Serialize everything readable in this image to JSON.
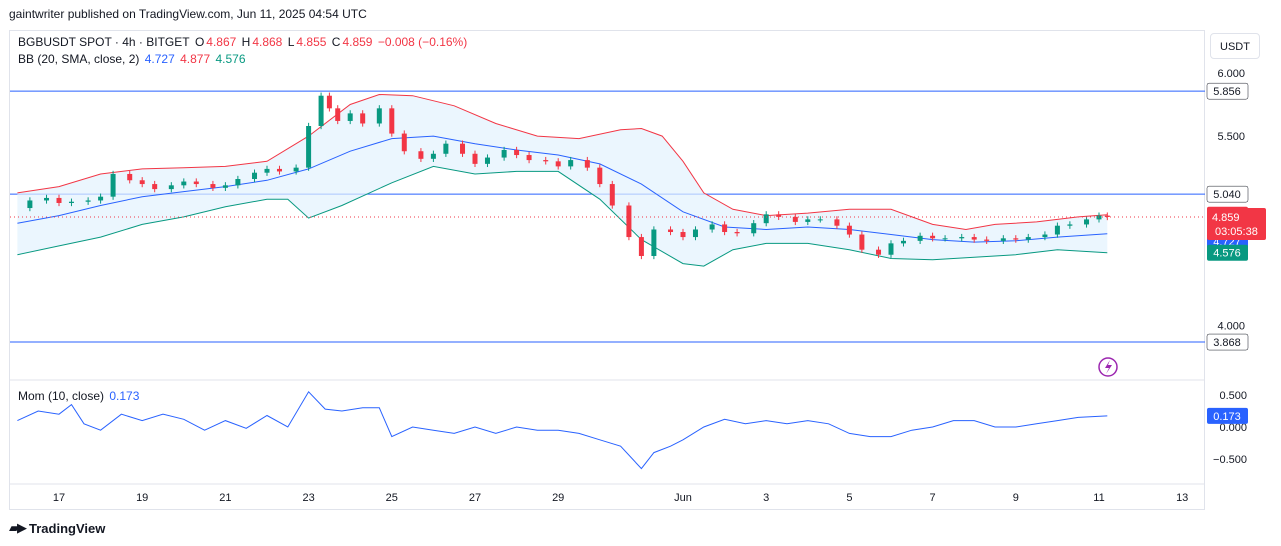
{
  "header": {
    "publisher": "gaintwriter published on TradingView.com, Jun 11, 2025 04:54 UTC"
  },
  "currency": "USDT",
  "footer": {
    "brand": "TradingView"
  },
  "legend": {
    "symbol": "BGBUSDT SPOT · 4h · BITGET",
    "o_label": "O",
    "o": "4.867",
    "h_label": "H",
    "h": "4.868",
    "l_label": "L",
    "l": "4.855",
    "c_label": "C",
    "c": "4.859",
    "change": "−0.008 (−0.16%)",
    "bb_label": "BB (20, SMA, close, 2)",
    "bb_mid": "4.727",
    "bb_upper": "4.877",
    "bb_lower": "4.576",
    "mom_label": "Mom (10, close)",
    "mom_value": "0.173"
  },
  "colors": {
    "up": "#089981",
    "down": "#f23645",
    "upper_band": "#f23645",
    "basis": "#2962ff",
    "lower_band": "#089981",
    "band_fill": "#e3f2fd",
    "hline": "#2962ff",
    "momentum": "#2962ff"
  },
  "chart_data": [
    {
      "type": "candlestick",
      "title": "BGBUSDT SPOT · 4h · BITGET",
      "ylim": [
        3.72,
        6.18
      ],
      "y_ticks": [
        "6.000",
        "5.500",
        "4.000"
      ],
      "x_ticks": [
        "17",
        "19",
        "21",
        "23",
        "25",
        "27",
        "29",
        "Jun",
        "3",
        "5",
        "7",
        "9",
        "11",
        "13"
      ],
      "x_tick_dates": [
        17,
        19,
        21,
        23,
        25,
        27,
        29,
        32,
        34,
        36,
        38,
        40,
        42,
        44
      ],
      "date_offset_note": "May dates; Jun dates expressed as 31 + day",
      "horizontal_lines": [
        5.856,
        5.04,
        3.868
      ],
      "horizontal_line_labels": [
        "5.856",
        "5.040",
        "3.868"
      ],
      "current_price": 4.859,
      "current_price_label": "4.859",
      "countdown": "03:05:38",
      "price_labels": {
        "bb_upper": "4.877",
        "bb_mid": "4.727",
        "bb_lower": "4.576"
      },
      "series": [
        {
          "name": "Close",
          "points": [
            [
              16.0,
              4.93
            ],
            [
              16.3,
              4.99
            ],
            [
              16.7,
              5.01
            ],
            [
              17.0,
              4.97
            ],
            [
              17.3,
              4.98
            ],
            [
              17.7,
              4.99
            ],
            [
              18.0,
              5.02
            ],
            [
              18.3,
              5.2
            ],
            [
              18.7,
              5.15
            ],
            [
              19.0,
              5.12
            ],
            [
              19.3,
              5.08
            ],
            [
              19.7,
              5.11
            ],
            [
              20.0,
              5.14
            ],
            [
              20.3,
              5.12
            ],
            [
              20.7,
              5.09
            ],
            [
              21.0,
              5.11
            ],
            [
              21.3,
              5.16
            ],
            [
              21.7,
              5.21
            ],
            [
              22.0,
              5.24
            ],
            [
              22.3,
              5.22
            ],
            [
              22.7,
              5.25
            ],
            [
              23.0,
              5.58
            ],
            [
              23.3,
              5.82
            ],
            [
              23.5,
              5.72
            ],
            [
              23.7,
              5.62
            ],
            [
              24.0,
              5.68
            ],
            [
              24.3,
              5.6
            ],
            [
              24.7,
              5.72
            ],
            [
              25.0,
              5.52
            ],
            [
              25.3,
              5.38
            ],
            [
              25.7,
              5.32
            ],
            [
              26.0,
              5.36
            ],
            [
              26.3,
              5.44
            ],
            [
              26.7,
              5.36
            ],
            [
              27.0,
              5.28
            ],
            [
              27.3,
              5.33
            ],
            [
              27.7,
              5.39
            ],
            [
              28.0,
              5.35
            ],
            [
              28.3,
              5.31
            ],
            [
              28.7,
              5.3
            ],
            [
              29.0,
              5.26
            ],
            [
              29.3,
              5.31
            ],
            [
              29.7,
              5.25
            ],
            [
              30.0,
              5.12
            ],
            [
              30.3,
              4.95
            ],
            [
              30.7,
              4.7
            ],
            [
              31.0,
              4.55
            ],
            [
              31.3,
              4.76
            ],
            [
              31.7,
              4.74
            ],
            [
              32.0,
              4.7
            ],
            [
              32.3,
              4.76
            ],
            [
              32.7,
              4.8
            ],
            [
              33.0,
              4.74
            ],
            [
              33.3,
              4.73
            ],
            [
              33.7,
              4.81
            ],
            [
              34.0,
              4.88
            ],
            [
              34.3,
              4.86
            ],
            [
              34.7,
              4.82
            ],
            [
              35.0,
              4.84
            ],
            [
              35.3,
              4.84
            ],
            [
              35.7,
              4.79
            ],
            [
              36.0,
              4.72
            ],
            [
              36.3,
              4.6
            ],
            [
              36.7,
              4.56
            ],
            [
              37.0,
              4.65
            ],
            [
              37.3,
              4.67
            ],
            [
              37.7,
              4.71
            ],
            [
              38.0,
              4.69
            ],
            [
              38.3,
              4.69
            ],
            [
              38.7,
              4.7
            ],
            [
              39.0,
              4.68
            ],
            [
              39.3,
              4.67
            ],
            [
              39.7,
              4.69
            ],
            [
              40.0,
              4.68
            ],
            [
              40.3,
              4.7
            ],
            [
              40.7,
              4.72
            ],
            [
              41.0,
              4.79
            ],
            [
              41.3,
              4.8
            ],
            [
              41.7,
              4.84
            ],
            [
              42.0,
              4.87
            ],
            [
              42.2,
              4.859
            ]
          ]
        },
        {
          "name": "BB Upper",
          "points": [
            [
              16.0,
              5.05
            ],
            [
              17.0,
              5.1
            ],
            [
              18.0,
              5.2
            ],
            [
              19.0,
              5.24
            ],
            [
              20.0,
              5.25
            ],
            [
              21.0,
              5.26
            ],
            [
              22.0,
              5.3
            ],
            [
              23.0,
              5.5
            ],
            [
              24.0,
              5.75
            ],
            [
              24.7,
              5.83
            ],
            [
              25.5,
              5.82
            ],
            [
              26.5,
              5.74
            ],
            [
              27.5,
              5.6
            ],
            [
              28.5,
              5.5
            ],
            [
              29.5,
              5.48
            ],
            [
              30.5,
              5.55
            ],
            [
              31.0,
              5.56
            ],
            [
              31.5,
              5.5
            ],
            [
              32.0,
              5.3
            ],
            [
              32.5,
              5.05
            ],
            [
              33.2,
              4.92
            ],
            [
              34.0,
              4.87
            ],
            [
              35.0,
              4.89
            ],
            [
              36.0,
              4.92
            ],
            [
              37.0,
              4.92
            ],
            [
              38.0,
              4.8
            ],
            [
              38.8,
              4.76
            ],
            [
              39.5,
              4.8
            ],
            [
              40.5,
              4.82
            ],
            [
              41.5,
              4.86
            ],
            [
              42.2,
              4.877
            ]
          ]
        },
        {
          "name": "BB Basis",
          "points": [
            [
              16.0,
              4.81
            ],
            [
              17.0,
              4.87
            ],
            [
              18.0,
              4.95
            ],
            [
              19.0,
              5.02
            ],
            [
              20.0,
              5.06
            ],
            [
              21.0,
              5.1
            ],
            [
              22.0,
              5.15
            ],
            [
              23.0,
              5.24
            ],
            [
              24.0,
              5.38
            ],
            [
              25.0,
              5.48
            ],
            [
              26.0,
              5.5
            ],
            [
              27.0,
              5.44
            ],
            [
              28.0,
              5.39
            ],
            [
              29.0,
              5.35
            ],
            [
              30.0,
              5.28
            ],
            [
              31.0,
              5.12
            ],
            [
              32.0,
              4.9
            ],
            [
              33.0,
              4.78
            ],
            [
              34.0,
              4.76
            ],
            [
              35.0,
              4.78
            ],
            [
              36.0,
              4.76
            ],
            [
              37.0,
              4.72
            ],
            [
              38.0,
              4.68
            ],
            [
              39.0,
              4.66
            ],
            [
              40.0,
              4.67
            ],
            [
              41.0,
              4.7
            ],
            [
              42.2,
              4.727
            ]
          ]
        },
        {
          "name": "BB Lower",
          "points": [
            [
              16.0,
              4.56
            ],
            [
              17.0,
              4.63
            ],
            [
              18.0,
              4.7
            ],
            [
              19.0,
              4.8
            ],
            [
              20.0,
              4.86
            ],
            [
              21.0,
              4.94
            ],
            [
              22.0,
              5.0
            ],
            [
              22.5,
              5.0
            ],
            [
              23.0,
              4.85
            ],
            [
              23.8,
              4.95
            ],
            [
              25.0,
              5.13
            ],
            [
              26.0,
              5.26
            ],
            [
              27.0,
              5.2
            ],
            [
              28.0,
              5.22
            ],
            [
              29.0,
              5.22
            ],
            [
              30.0,
              5.0
            ],
            [
              31.0,
              4.68
            ],
            [
              32.0,
              4.49
            ],
            [
              32.5,
              4.47
            ],
            [
              33.2,
              4.6
            ],
            [
              34.0,
              4.65
            ],
            [
              35.0,
              4.65
            ],
            [
              36.0,
              4.6
            ],
            [
              37.0,
              4.53
            ],
            [
              38.0,
              4.52
            ],
            [
              39.0,
              4.54
            ],
            [
              40.0,
              4.56
            ],
            [
              41.0,
              4.6
            ],
            [
              42.2,
              4.576
            ]
          ]
        }
      ]
    },
    {
      "type": "line",
      "title": "Mom (10, close)",
      "ylim": [
        -0.85,
        0.75
      ],
      "y_ticks": [
        "0.500",
        "0.000",
        "−0.500"
      ],
      "current_label": "0.173",
      "series": [
        {
          "name": "Mom",
          "points": [
            [
              16.0,
              0.1
            ],
            [
              16.5,
              0.25
            ],
            [
              17.0,
              0.2
            ],
            [
              17.3,
              0.35
            ],
            [
              17.6,
              0.05
            ],
            [
              18.0,
              -0.05
            ],
            [
              18.5,
              0.2
            ],
            [
              19.0,
              0.1
            ],
            [
              19.5,
              0.2
            ],
            [
              20.0,
              0.12
            ],
            [
              20.5,
              -0.05
            ],
            [
              21.0,
              0.1
            ],
            [
              21.5,
              -0.02
            ],
            [
              22.0,
              0.18
            ],
            [
              22.5,
              0.0
            ],
            [
              23.0,
              0.55
            ],
            [
              23.4,
              0.28
            ],
            [
              23.8,
              0.25
            ],
            [
              24.3,
              0.3
            ],
            [
              24.7,
              0.3
            ],
            [
              25.0,
              -0.15
            ],
            [
              25.5,
              0.0
            ],
            [
              26.0,
              -0.05
            ],
            [
              26.5,
              -0.1
            ],
            [
              27.0,
              0.0
            ],
            [
              27.5,
              -0.1
            ],
            [
              28.0,
              0.0
            ],
            [
              28.5,
              -0.05
            ],
            [
              29.0,
              -0.05
            ],
            [
              29.5,
              -0.1
            ],
            [
              30.0,
              -0.2
            ],
            [
              30.5,
              -0.3
            ],
            [
              31.0,
              -0.65
            ],
            [
              31.3,
              -0.4
            ],
            [
              31.7,
              -0.3
            ],
            [
              32.0,
              -0.2
            ],
            [
              32.5,
              0.0
            ],
            [
              33.0,
              0.12
            ],
            [
              33.5,
              0.05
            ],
            [
              34.0,
              0.1
            ],
            [
              34.5,
              0.05
            ],
            [
              35.0,
              0.1
            ],
            [
              35.5,
              0.05
            ],
            [
              36.0,
              -0.1
            ],
            [
              36.5,
              -0.15
            ],
            [
              37.0,
              -0.15
            ],
            [
              37.5,
              -0.05
            ],
            [
              38.0,
              0.0
            ],
            [
              38.5,
              0.1
            ],
            [
              39.0,
              0.1
            ],
            [
              39.5,
              0.0
            ],
            [
              40.0,
              0.0
            ],
            [
              40.5,
              0.05
            ],
            [
              41.0,
              0.1
            ],
            [
              41.5,
              0.15
            ],
            [
              42.2,
              0.173
            ]
          ]
        }
      ]
    }
  ]
}
